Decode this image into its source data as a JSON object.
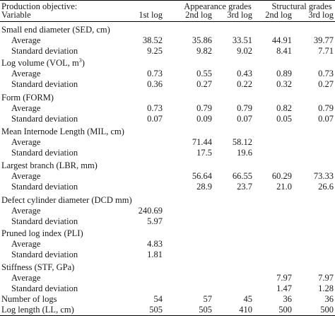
{
  "header": {
    "objective_label": "Production objective:",
    "variable_label": "Variable",
    "group_appearance": "Appearance grades",
    "group_structural": "Structural grades",
    "columns": [
      "1st log",
      "2nd log",
      "3rd log",
      "2nd log",
      "3rd log"
    ]
  },
  "sections": [
    {
      "title": "Small end diameter (SED, cm)",
      "rows": [
        {
          "label": "Average",
          "values": [
            "38.52",
            "35.86",
            "33.51",
            "44.91",
            "39.77"
          ]
        },
        {
          "label": "Standard deviation",
          "values": [
            "9.25",
            "9.82",
            "9.02",
            "8.41",
            "7.71"
          ]
        }
      ]
    },
    {
      "title": "Log volume (VOL, m",
      "title_sup": "3",
      "title_end": ")",
      "rows": [
        {
          "label": "Average",
          "values": [
            "0.73",
            "0.55",
            "0.43",
            "0.89",
            "0.73"
          ]
        },
        {
          "label": "Standard deviation",
          "values": [
            "0.36",
            "0.27",
            "0.22",
            "0.32",
            "0.27"
          ]
        }
      ]
    },
    {
      "title": "Form (FORM)",
      "rows": [
        {
          "label": "Average",
          "values": [
            "0.73",
            "0.79",
            "0.79",
            "0.82",
            "0.79"
          ]
        },
        {
          "label": "Standard deviation",
          "values": [
            "0.07",
            "0.09",
            "0.07",
            "0.05",
            "0.07"
          ]
        }
      ]
    },
    {
      "title": "Mean Internode Length (MIL, cm)",
      "rows": [
        {
          "label": "Average",
          "values": [
            "",
            "71.44",
            "58.12",
            "",
            ""
          ]
        },
        {
          "label": "Standard deviation",
          "values": [
            "",
            "17.5",
            "19.6",
            "",
            ""
          ]
        }
      ]
    },
    {
      "title": "Largest branch (LBR, mm)",
      "rows": [
        {
          "label": "Average",
          "values": [
            "",
            "56.64",
            "66.55",
            "60.29",
            "73.33"
          ]
        },
        {
          "label": "Standard deviation",
          "values": [
            "",
            "28.9",
            "23.7",
            "21.0",
            "26.6"
          ]
        }
      ]
    },
    {
      "title": "Defect cylinder diameter (DCD mm)",
      "rows": [
        {
          "label": "Average",
          "values": [
            "240.69",
            "",
            "",
            "",
            ""
          ]
        },
        {
          "label": "Standard deviation",
          "values": [
            "5.97",
            "",
            "",
            "",
            ""
          ]
        }
      ]
    },
    {
      "title": "Pruned log index (PLI)",
      "rows": [
        {
          "label": "Average",
          "values": [
            "4.83",
            "",
            "",
            "",
            ""
          ]
        },
        {
          "label": "Standard deviation",
          "values": [
            "1.81",
            "",
            "",
            "",
            ""
          ]
        }
      ]
    },
    {
      "title": "Stiffness (STF, GPa)",
      "rows": [
        {
          "label": "Average",
          "values": [
            "",
            "",
            "",
            "7.97",
            "7.97"
          ]
        },
        {
          "label": "Standard deviation",
          "values": [
            "",
            "",
            "",
            "1.47",
            "1.28"
          ]
        }
      ]
    }
  ],
  "footer_rows": [
    {
      "label": "Number of logs",
      "values": [
        "54",
        "57",
        "45",
        "36",
        "36"
      ]
    },
    {
      "label": "Log length (LL, cm)",
      "values": [
        "505",
        "505",
        "410",
        "500",
        "500"
      ]
    }
  ]
}
